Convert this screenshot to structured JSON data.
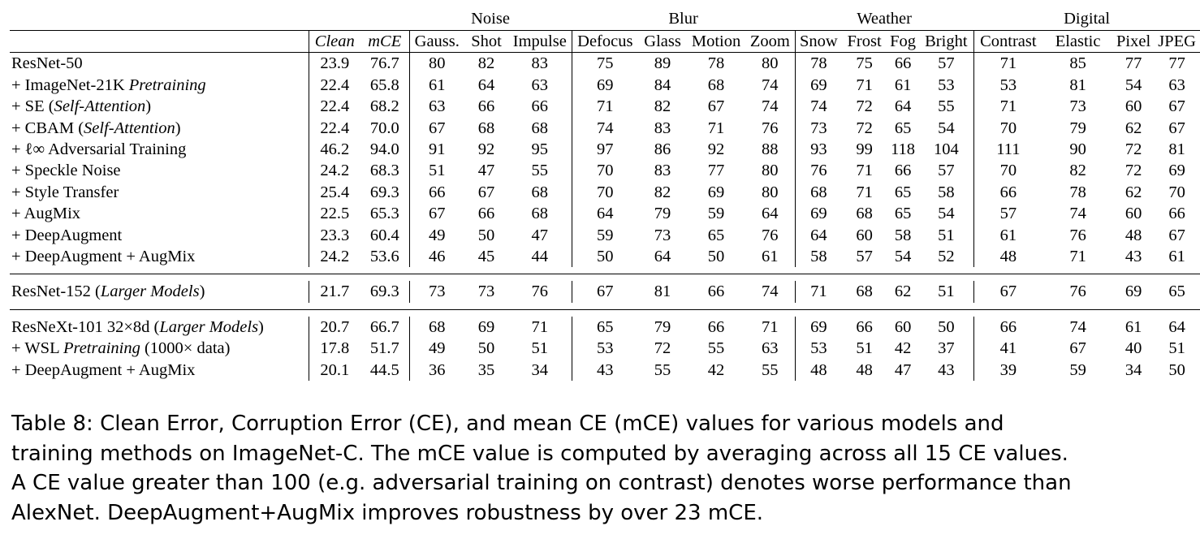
{
  "table": {
    "groups": [
      {
        "label": "Noise",
        "span": 3
      },
      {
        "label": "Blur",
        "span": 4
      },
      {
        "label": "Weather",
        "span": 4
      },
      {
        "label": "Digital",
        "span": 4
      }
    ],
    "columns": [
      "Clean",
      "mCE",
      "Gauss.",
      "Shot",
      "Impulse",
      "Defocus",
      "Glass",
      "Motion",
      "Zoom",
      "Snow",
      "Frost",
      "Fog",
      "Bright",
      "Contrast",
      "Elastic",
      "Pixel",
      "JPEG"
    ],
    "sections": [
      {
        "rows": [
          {
            "plain": "ResNet-50",
            "ital": "",
            "tail": "",
            "values": [
              "23.9",
              "76.7",
              "80",
              "82",
              "83",
              "75",
              "89",
              "78",
              "80",
              "78",
              "75",
              "66",
              "57",
              "71",
              "85",
              "77",
              "77"
            ]
          },
          {
            "plain": "+ ImageNet-21K ",
            "ital": "Pretraining",
            "tail": "",
            "values": [
              "22.4",
              "65.8",
              "61",
              "64",
              "63",
              "69",
              "84",
              "68",
              "74",
              "69",
              "71",
              "61",
              "53",
              "53",
              "81",
              "54",
              "63"
            ]
          },
          {
            "plain": "+ SE (",
            "ital": "Self-Attention",
            "tail": ")",
            "values": [
              "22.4",
              "68.2",
              "63",
              "66",
              "66",
              "71",
              "82",
              "67",
              "74",
              "74",
              "72",
              "64",
              "55",
              "71",
              "73",
              "60",
              "67"
            ]
          },
          {
            "plain": "+ CBAM (",
            "ital": "Self-Attention",
            "tail": ")",
            "values": [
              "22.4",
              "70.0",
              "67",
              "68",
              "68",
              "74",
              "83",
              "71",
              "76",
              "73",
              "72",
              "65",
              "54",
              "70",
              "79",
              "62",
              "67"
            ]
          },
          {
            "plain": "+ ℓ∞ Adversarial Training",
            "ital": "",
            "tail": "",
            "values": [
              "46.2",
              "94.0",
              "91",
              "92",
              "95",
              "97",
              "86",
              "92",
              "88",
              "93",
              "99",
              "118",
              "104",
              "111",
              "90",
              "72",
              "81"
            ]
          },
          {
            "plain": "+ Speckle Noise",
            "ital": "",
            "tail": "",
            "values": [
              "24.2",
              "68.3",
              "51",
              "47",
              "55",
              "70",
              "83",
              "77",
              "80",
              "76",
              "71",
              "66",
              "57",
              "70",
              "82",
              "72",
              "69"
            ]
          },
          {
            "plain": "+ Style Transfer",
            "ital": "",
            "tail": "",
            "values": [
              "25.4",
              "69.3",
              "66",
              "67",
              "68",
              "70",
              "82",
              "69",
              "80",
              "68",
              "71",
              "65",
              "58",
              "66",
              "78",
              "62",
              "70"
            ]
          },
          {
            "plain": "+ AugMix",
            "ital": "",
            "tail": "",
            "values": [
              "22.5",
              "65.3",
              "67",
              "66",
              "68",
              "64",
              "79",
              "59",
              "64",
              "69",
              "68",
              "65",
              "54",
              "57",
              "74",
              "60",
              "66"
            ]
          },
          {
            "plain": "+ DeepAugment",
            "ital": "",
            "tail": "",
            "values": [
              "23.3",
              "60.4",
              "49",
              "50",
              "47",
              "59",
              "73",
              "65",
              "76",
              "64",
              "60",
              "58",
              "51",
              "61",
              "76",
              "48",
              "67"
            ]
          },
          {
            "plain": "+ DeepAugment + AugMix",
            "ital": "",
            "tail": "",
            "values": [
              "24.2",
              "53.6",
              "46",
              "45",
              "44",
              "50",
              "64",
              "50",
              "61",
              "58",
              "57",
              "54",
              "52",
              "48",
              "71",
              "43",
              "61"
            ]
          }
        ]
      },
      {
        "rows": [
          {
            "plain": "ResNet-152 (",
            "ital": "Larger Models",
            "tail": ")",
            "values": [
              "21.7",
              "69.3",
              "73",
              "73",
              "76",
              "67",
              "81",
              "66",
              "74",
              "71",
              "68",
              "62",
              "51",
              "67",
              "76",
              "69",
              "65"
            ]
          }
        ]
      },
      {
        "rows": [
          {
            "plain": "ResNeXt-101 32×8d (",
            "ital": "Larger Models",
            "tail": ")",
            "values": [
              "20.7",
              "66.7",
              "68",
              "69",
              "71",
              "65",
              "79",
              "66",
              "71",
              "69",
              "66",
              "60",
              "50",
              "66",
              "74",
              "61",
              "64"
            ]
          },
          {
            "plain": "+ WSL ",
            "ital": "Pretraining",
            "tail": " (1000× data)",
            "values": [
              "17.8",
              "51.7",
              "49",
              "50",
              "51",
              "53",
              "72",
              "55",
              "63",
              "53",
              "51",
              "42",
              "37",
              "41",
              "67",
              "40",
              "51"
            ]
          },
          {
            "plain": "+ DeepAugment + AugMix",
            "ital": "",
            "tail": "",
            "values": [
              "20.1",
              "44.5",
              "36",
              "35",
              "34",
              "43",
              "55",
              "42",
              "55",
              "48",
              "48",
              "47",
              "43",
              "39",
              "59",
              "34",
              "50"
            ]
          }
        ]
      }
    ]
  },
  "caption": {
    "lines": [
      "Table 8: Clean Error, Corruption Error (CE), and mean CE (mCE) values for various models and",
      "training methods on ImageNet-C. The mCE value is computed by averaging across all 15 CE values.",
      "A CE value greater than 100 (e.g. adversarial training on contrast) denotes worse performance than",
      "AlexNet. DeepAugment+AugMix improves robustness by over 23 mCE."
    ]
  }
}
